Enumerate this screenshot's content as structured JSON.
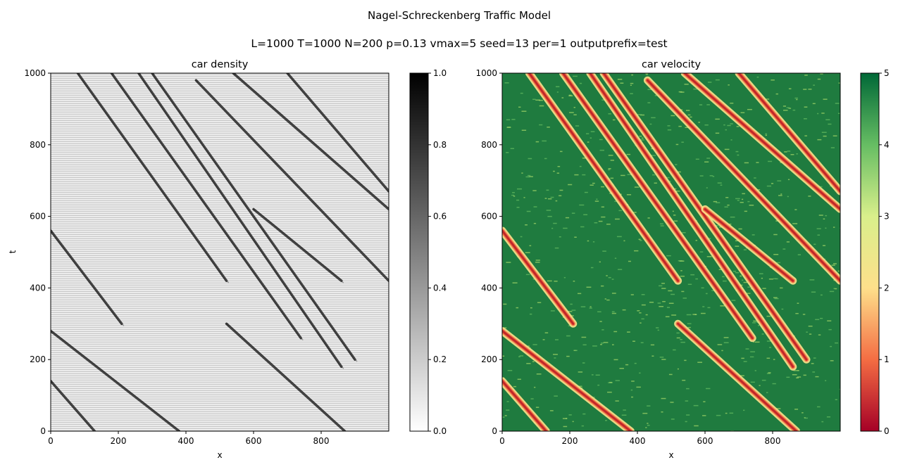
{
  "figure": {
    "suptitle": "Nagel-Schreckenberg Traffic Model",
    "subtitle": "L=1000 T=1000 N=200 p=0.13 vmax=5 seed=13 per=1 outputprefix=test"
  },
  "chart_data": [
    {
      "type": "heatmap",
      "title": "car density",
      "xlabel": "x",
      "ylabel": "t",
      "xlim": [
        0,
        1000
      ],
      "ylim": [
        0,
        1000
      ],
      "xticks": [
        0,
        200,
        400,
        600,
        800
      ],
      "yticks": [
        0,
        200,
        400,
        600,
        800,
        1000
      ],
      "colormap": "gray_r",
      "colorbar": {
        "range": [
          0.0,
          1.0
        ],
        "ticks": [
          "0.0",
          "0.2",
          "0.4",
          "0.6",
          "0.8",
          "1.0"
        ]
      },
      "jams": [
        {
          "x0": 0,
          "t0": 560,
          "x1": 210,
          "t1": 300
        },
        {
          "x0": 80,
          "t0": 1000,
          "x1": 520,
          "t1": 420
        },
        {
          "x0": 180,
          "t0": 1000,
          "x1": 740,
          "t1": 260
        },
        {
          "x0": 260,
          "t0": 1000,
          "x1": 860,
          "t1": 180
        },
        {
          "x0": 300,
          "t0": 1000,
          "x1": 900,
          "t1": 200
        },
        {
          "x0": 430,
          "t0": 980,
          "x1": 1000,
          "t1": 420
        },
        {
          "x0": 540,
          "t0": 1000,
          "x1": 1000,
          "t1": 620
        },
        {
          "x0": 700,
          "t0": 1000,
          "x1": 1000,
          "t1": 670
        },
        {
          "x0": 0,
          "t0": 280,
          "x1": 380,
          "t1": 0
        },
        {
          "x0": 0,
          "t0": 140,
          "x1": 130,
          "t1": 0
        },
        {
          "x0": 520,
          "t0": 300,
          "x1": 870,
          "t1": 0
        },
        {
          "x0": 600,
          "t0": 620,
          "x1": 860,
          "t1": 420
        }
      ]
    },
    {
      "type": "heatmap",
      "title": "car velocity",
      "xlabel": "x",
      "ylabel": "",
      "xlim": [
        0,
        1000
      ],
      "ylim": [
        0,
        1000
      ],
      "xticks": [
        0,
        200,
        400,
        600,
        800
      ],
      "yticks": [
        0,
        200,
        400,
        600,
        800,
        1000
      ],
      "colormap": "RdYlGn",
      "colormap_stops": [
        "#a50026",
        "#f46d43",
        "#fee08b",
        "#d9ef8b",
        "#66bd63",
        "#006837"
      ],
      "colorbar": {
        "range": [
          0,
          5
        ],
        "ticks": [
          "0",
          "1",
          "2",
          "3",
          "4",
          "5"
        ]
      }
    }
  ]
}
